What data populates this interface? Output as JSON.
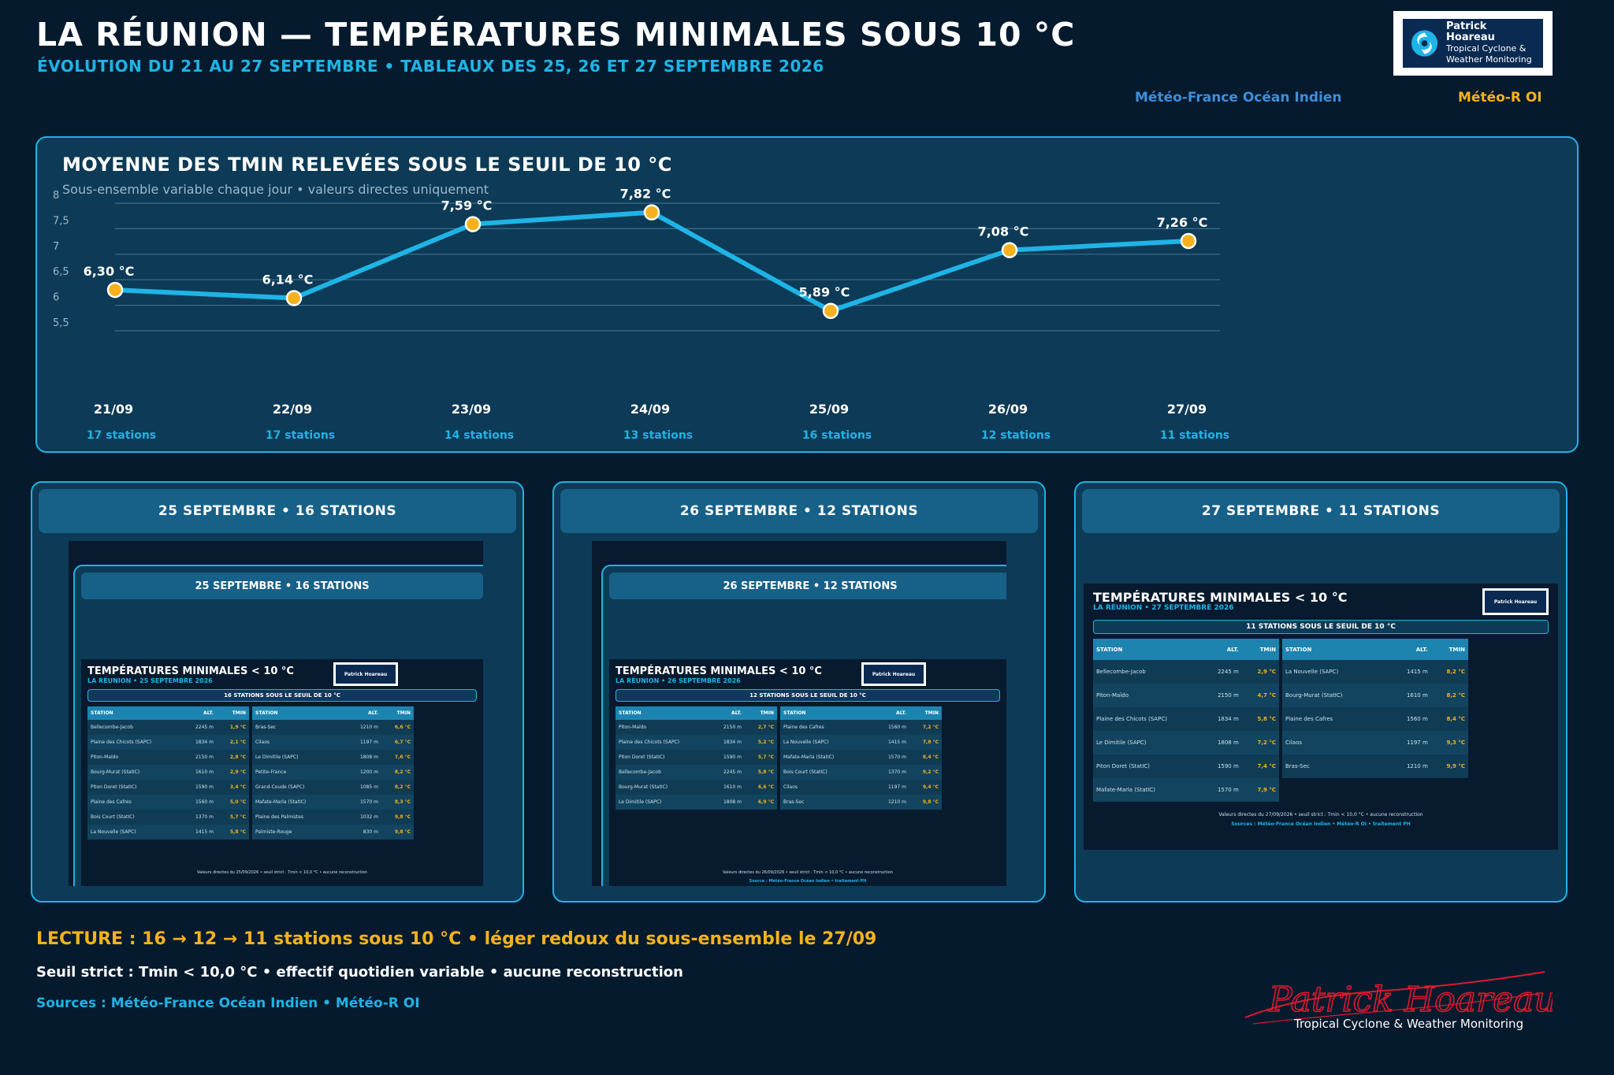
{
  "header": {
    "title": "LA RÉUNION — TEMPÉRATURES MINIMALES SOUS 10 °C",
    "subtitle": "ÉVOLUTION DU 21 AU 27 SEPTEMBRE • TABLEAUX DES 25, 26 ET 27 SEPTEMBRE 2026",
    "logo_name": "Patrick Hoareau",
    "logo_line1": "Tropical Cyclone &",
    "logo_line2": "Weather Monitoring",
    "source_mf": "Météo-France Océan Indien",
    "source_mr": "Météo-R OI"
  },
  "colors": {
    "background": "#061a2e",
    "panel": "#0d3a56",
    "accent": "#1eb4e6",
    "marker": "#f5b21c"
  },
  "chart_data": {
    "type": "line",
    "title": "MOYENNE DES TMIN RELEVÉES SOUS LE SEUIL DE 10 °C",
    "subtitle": "Sous-ensemble variable chaque jour • valeurs directes uniquement",
    "categories": [
      "21/09",
      "22/09",
      "23/09",
      "24/09",
      "25/09",
      "26/09",
      "27/09"
    ],
    "stations": [
      "17 stations",
      "17 stations",
      "14 stations",
      "13 stations",
      "16 stations",
      "12 stations",
      "11 stations"
    ],
    "values": [
      6.3,
      6.14,
      7.59,
      7.82,
      5.89,
      7.08,
      7.26
    ],
    "value_labels": [
      "6,30 °C",
      "6,14 °C",
      "7,59 °C",
      "7,82 °C",
      "5,89 °C",
      "7,08 °C",
      "7,26 °C"
    ],
    "ylim": [
      5.5,
      8
    ],
    "yticks": [
      5.5,
      6,
      6.5,
      7,
      7.5,
      8
    ],
    "ytick_labels": [
      "5,5",
      "6",
      "6,5",
      "7",
      "7,5",
      "8"
    ],
    "grid": true,
    "xlabel": "",
    "ylabel": ""
  },
  "tables": [
    {
      "header": "25 SEPTEMBRE • 16 STATIONS",
      "nested_header": "25 SEPTEMBRE • 16 STATIONS",
      "doc_title": "TEMPÉRATURES MINIMALES < 10 °C",
      "doc_subtitle": "LA RÉUNION • 25 SEPTEMBRE 2026",
      "band": "16 STATIONS SOUS LE SEUIL DE 10 °C",
      "col_station": "STATION",
      "col_alt": "ALT.",
      "col_tmin": "TMIN",
      "left": [
        [
          "Bellecombe-Jacob",
          "2245 m",
          "1,9 °C"
        ],
        [
          "Plaine des Chicots (SAPC)",
          "1834 m",
          "2,1 °C"
        ],
        [
          "Piton-Maïdo",
          "2150 m",
          "2,8 °C"
        ],
        [
          "Bourg-Murat (StatIC)",
          "1610 m",
          "2,9 °C"
        ],
        [
          "Piton Doret (StatIC)",
          "1590 m",
          "3,4 °C"
        ],
        [
          "Plaine des Cafres",
          "1560 m",
          "5,0 °C"
        ],
        [
          "Bois Court (StatIC)",
          "1370 m",
          "5,7 °C"
        ],
        [
          "La Nouvelle (SAPC)",
          "1415 m",
          "5,8 °C"
        ]
      ],
      "right": [
        [
          "Bras-Sec",
          "1210 m",
          "6,6 °C"
        ],
        [
          "Cilaos",
          "1197 m",
          "6,7 °C"
        ],
        [
          "Le Dimitile (SAPC)",
          "1808 m",
          "7,6 °C"
        ],
        [
          "Petite-France",
          "1200 m",
          "8,2 °C"
        ],
        [
          "Grand-Coude (SAPC)",
          "1085 m",
          "8,2 °C"
        ],
        [
          "Mafate-Marla (StatIC)",
          "1570 m",
          "8,3 °C"
        ],
        [
          "Plaine des Palmistes",
          "1032 m",
          "9,8 °C"
        ],
        [
          "Palmiste-Rouge",
          "830 m",
          "9,8 °C"
        ]
      ],
      "foot": "Valeurs directes du 25/09/2026 • seuil strict : Tmin < 10,0 °C • aucune reconstruction",
      "foot2": ""
    },
    {
      "header": "26 SEPTEMBRE • 12 STATIONS",
      "nested_header": "26 SEPTEMBRE • 12 STATIONS",
      "doc_title": "TEMPÉRATURES MINIMALES < 10 °C",
      "doc_subtitle": "LA RÉUNION • 26 SEPTEMBRE 2026",
      "band": "12 STATIONS SOUS LE SEUIL DE 10 °C",
      "col_station": "STATION",
      "col_alt": "ALT.",
      "col_tmin": "TMIN",
      "left": [
        [
          "Piton-Maïdo",
          "2150 m",
          "2,7 °C"
        ],
        [
          "Plaine des Chicots (SAPC)",
          "1834 m",
          "5,2 °C"
        ],
        [
          "Piton Doret (StatIC)",
          "1590 m",
          "5,7 °C"
        ],
        [
          "Bellecombe-Jacob",
          "2245 m",
          "5,8 °C"
        ],
        [
          "Bourg-Murat (StatIC)",
          "1610 m",
          "6,6 °C"
        ],
        [
          "Le Dimitile (SAPC)",
          "1808 m",
          "6,9 °C"
        ]
      ],
      "right": [
        [
          "Plaine des Cafres",
          "1560 m",
          "7,2 °C"
        ],
        [
          "La Nouvelle (SAPC)",
          "1415 m",
          "7,8 °C"
        ],
        [
          "Mafate-Marla (StatIC)",
          "1570 m",
          "8,4 °C"
        ],
        [
          "Bois Court (StatIC)",
          "1370 m",
          "9,2 °C"
        ],
        [
          "Cilaos",
          "1197 m",
          "9,4 °C"
        ],
        [
          "Bras-Sec",
          "1210 m",
          "9,8 °C"
        ]
      ],
      "foot": "Valeurs directes du 26/09/2026 • seuil strict : Tmin < 10,0 °C • aucune reconstruction",
      "foot2": "Source : Météo-France Océan Indien • traitement PH"
    },
    {
      "header": "27 SEPTEMBRE • 11 STATIONS",
      "doc_title": "TEMPÉRATURES MINIMALES < 10 °C",
      "doc_subtitle": "LA RÉUNION • 27 SEPTEMBRE 2026",
      "band": "11 STATIONS SOUS LE SEUIL DE 10 °C",
      "col_station": "STATION",
      "col_alt": "ALT.",
      "col_tmin": "TMIN",
      "left": [
        [
          "Bellecombe-Jacob",
          "2245 m",
          "2,9 °C"
        ],
        [
          "Piton-Maïdo",
          "2150 m",
          "4,7 °C"
        ],
        [
          "Plaine des Chicots (SAPC)",
          "1834 m",
          "5,8 °C"
        ],
        [
          "Le Dimitile (SAPC)",
          "1808 m",
          "7,2 °C"
        ],
        [
          "Piton Doret (StatIC)",
          "1590 m",
          "7,4 °C"
        ],
        [
          "Mafate-Marla (StatIC)",
          "1570 m",
          "7,9 °C"
        ]
      ],
      "right": [
        [
          "La Nouvelle (SAPC)",
          "1415 m",
          "8,2 °C"
        ],
        [
          "Bourg-Murat (StatIC)",
          "1610 m",
          "8,2 °C"
        ],
        [
          "Plaine des Cafres",
          "1560 m",
          "8,4 °C"
        ],
        [
          "Cilaos",
          "1197 m",
          "9,3 °C"
        ],
        [
          "Bras-Sec",
          "1210 m",
          "9,9 °C"
        ]
      ],
      "foot": "Valeurs directes du 27/09/2026 • seuil strict : Tmin < 10,0 °C • aucune reconstruction",
      "foot2": "Sources : Météo-France Océan Indien • Météo-R OI • traitement PH"
    }
  ],
  "footer": {
    "lecture": "LECTURE : 16 → 12 → 11 stations sous 10 °C • léger redoux du sous-ensemble le 27/09",
    "seuil": "Seuil strict : Tmin < 10,0 °C • effectif quotidien variable • aucune reconstruction",
    "sources": "Sources : Météo-France Océan Indien • Météo-R OI",
    "signature_name": "Patrick Hoareau",
    "signature_tagline": "Tropical Cyclone & Weather Monitoring"
  }
}
